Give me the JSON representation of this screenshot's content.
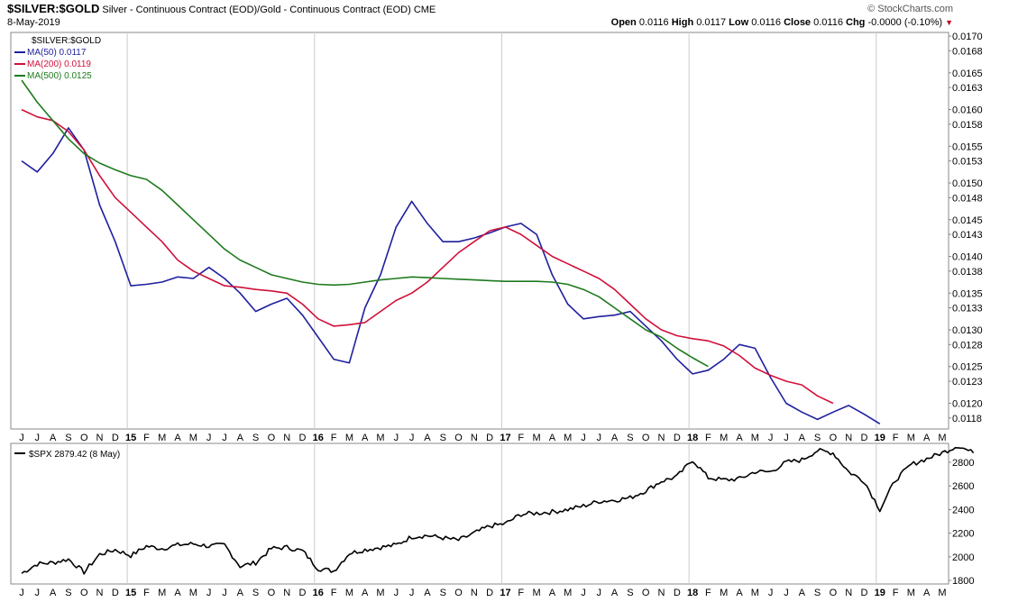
{
  "header": {
    "symbol": "$SILVER:$GOLD",
    "description": "Silver - Continuous Contract (EOD)/Gold - Continuous Contract (EOD)",
    "exchange": "CME",
    "date": "8-May-2019",
    "brand": "© StockCharts.com",
    "open_label": "Open",
    "open": "0.0116",
    "high_label": "High",
    "high": "0.0117",
    "low_label": "Low",
    "low": "0.0116",
    "close_label": "Close",
    "close": "0.0116",
    "chg_label": "Chg",
    "chg": "-0.0000 (-0.10%)"
  },
  "colors": {
    "ma50": "#1f1f9f",
    "ma200": "#d0103a",
    "ma500": "#1e7a1e",
    "spx": "#000000",
    "grid": "#cccccc",
    "down": "#c00020"
  },
  "chart_data": [
    {
      "type": "line",
      "title": "$SILVER:$GOLD",
      "x_months": [
        "J",
        "J",
        "A",
        "S",
        "O",
        "N",
        "D",
        "15",
        "F",
        "M",
        "A",
        "M",
        "J",
        "J",
        "A",
        "S",
        "O",
        "N",
        "D",
        "16",
        "F",
        "M",
        "A",
        "M",
        "J",
        "J",
        "A",
        "S",
        "O",
        "N",
        "D",
        "17",
        "F",
        "M",
        "A",
        "M",
        "J",
        "J",
        "A",
        "S",
        "O",
        "N",
        "D",
        "18",
        "F",
        "M",
        "A",
        "M",
        "J",
        "J",
        "A",
        "S",
        "O",
        "N",
        "D",
        "19",
        "F",
        "M",
        "A",
        "M"
      ],
      "y_ticks": [
        "0.0118",
        "0.0120",
        "0.0123",
        "0.0125",
        "0.0128",
        "0.0130",
        "0.0133",
        "0.0135",
        "0.0138",
        "0.0140",
        "0.0143",
        "0.0145",
        "0.0148",
        "0.0150",
        "0.0153",
        "0.0155",
        "0.0158",
        "0.0160",
        "0.0163",
        "0.0165",
        "0.0168",
        "0.0170"
      ],
      "ylim": [
        0.01165,
        0.01705
      ],
      "legend": [
        {
          "key": "price",
          "label": "$SILVER:$GOLD"
        },
        {
          "key": "ma50",
          "label": "MA(50) 0.0117"
        },
        {
          "key": "ma200",
          "label": "MA(200) 0.0119"
        },
        {
          "key": "ma500",
          "label": "MA(500) 0.0125"
        }
      ],
      "series": [
        {
          "name": "MA(50)",
          "key": "ma50",
          "points": [
            [
              0,
              0.0153
            ],
            [
              1,
              0.01515
            ],
            [
              2,
              0.0154
            ],
            [
              3,
              0.01575
            ],
            [
              4,
              0.01545
            ],
            [
              5,
              0.0147
            ],
            [
              6,
              0.0142
            ],
            [
              7,
              0.0136
            ],
            [
              8,
              0.01362
            ],
            [
              9,
              0.01365
            ],
            [
              10,
              0.01372
            ],
            [
              11,
              0.0137
            ],
            [
              12,
              0.01385
            ],
            [
              13,
              0.0137
            ],
            [
              14,
              0.0135
            ],
            [
              15,
              0.01325
            ],
            [
              16,
              0.01335
            ],
            [
              17,
              0.01343
            ],
            [
              18,
              0.0132
            ],
            [
              19,
              0.0129
            ],
            [
              20,
              0.0126
            ],
            [
              21,
              0.01255
            ],
            [
              22,
              0.0133
            ],
            [
              23,
              0.01375
            ],
            [
              24,
              0.0144
            ],
            [
              25,
              0.01475
            ],
            [
              26,
              0.01445
            ],
            [
              27,
              0.0142
            ],
            [
              28,
              0.0142
            ],
            [
              29,
              0.01425
            ],
            [
              30,
              0.01432
            ],
            [
              31,
              0.0144
            ],
            [
              32,
              0.01445
            ],
            [
              33,
              0.0143
            ],
            [
              34,
              0.01375
            ],
            [
              35,
              0.01335
            ],
            [
              36,
              0.01315
            ],
            [
              37,
              0.01318
            ],
            [
              38,
              0.0132
            ],
            [
              39,
              0.01325
            ],
            [
              40,
              0.01305
            ],
            [
              41,
              0.01285
            ],
            [
              42,
              0.0126
            ],
            [
              43,
              0.0124
            ],
            [
              44,
              0.01245
            ],
            [
              45,
              0.0126
            ],
            [
              46,
              0.0128
            ],
            [
              47,
              0.01275
            ],
            [
              48,
              0.01235
            ],
            [
              49,
              0.012
            ],
            [
              50,
              0.01188
            ],
            [
              51,
              0.01178
            ],
            [
              52,
              0.01188
            ],
            [
              53,
              0.01197
            ],
            [
              54,
              0.01185
            ],
            [
              55,
              0.01172
            ]
          ]
        },
        {
          "name": "MA(200)",
          "key": "ma200",
          "points": [
            [
              0,
              0.016
            ],
            [
              1,
              0.0159
            ],
            [
              2,
              0.01585
            ],
            [
              3,
              0.0157
            ],
            [
              4,
              0.01545
            ],
            [
              5,
              0.0151
            ],
            [
              6,
              0.0148
            ],
            [
              7,
              0.0146
            ],
            [
              8,
              0.0144
            ],
            [
              9,
              0.0142
            ],
            [
              10,
              0.01395
            ],
            [
              11,
              0.0138
            ],
            [
              12,
              0.0137
            ],
            [
              13,
              0.0136
            ],
            [
              14,
              0.01358
            ],
            [
              15,
              0.01355
            ],
            [
              16,
              0.01353
            ],
            [
              17,
              0.0135
            ],
            [
              18,
              0.01335
            ],
            [
              19,
              0.01315
            ],
            [
              20,
              0.01305
            ],
            [
              21,
              0.01307
            ],
            [
              22,
              0.0131
            ],
            [
              23,
              0.01325
            ],
            [
              24,
              0.0134
            ],
            [
              25,
              0.0135
            ],
            [
              26,
              0.01365
            ],
            [
              27,
              0.01385
            ],
            [
              28,
              0.01405
            ],
            [
              29,
              0.0142
            ],
            [
              30,
              0.01435
            ],
            [
              31,
              0.0144
            ],
            [
              32,
              0.0143
            ],
            [
              33,
              0.01415
            ],
            [
              34,
              0.014
            ],
            [
              35,
              0.0139
            ],
            [
              36,
              0.0138
            ],
            [
              37,
              0.0137
            ],
            [
              38,
              0.01355
            ],
            [
              39,
              0.01335
            ],
            [
              40,
              0.01315
            ],
            [
              41,
              0.013
            ],
            [
              42,
              0.01292
            ],
            [
              43,
              0.01288
            ],
            [
              44,
              0.01285
            ],
            [
              45,
              0.01278
            ],
            [
              46,
              0.01265
            ],
            [
              47,
              0.01248
            ],
            [
              48,
              0.01238
            ],
            [
              49,
              0.0123
            ],
            [
              50,
              0.01225
            ],
            [
              51,
              0.0121
            ],
            [
              52,
              0.012
            ]
          ]
        },
        {
          "name": "MA(500)",
          "key": "ma500",
          "points": [
            [
              0,
              0.0164
            ],
            [
              1,
              0.0161
            ],
            [
              2,
              0.01585
            ],
            [
              3,
              0.0156
            ],
            [
              4,
              0.0154
            ],
            [
              5,
              0.01527
            ],
            [
              6,
              0.01518
            ],
            [
              7,
              0.0151
            ],
            [
              8,
              0.01505
            ],
            [
              9,
              0.0149
            ],
            [
              10,
              0.0147
            ],
            [
              11,
              0.0145
            ],
            [
              12,
              0.0143
            ],
            [
              13,
              0.0141
            ],
            [
              14,
              0.01395
            ],
            [
              15,
              0.01385
            ],
            [
              16,
              0.01375
            ],
            [
              17,
              0.0137
            ],
            [
              18,
              0.01365
            ],
            [
              19,
              0.01362
            ],
            [
              20,
              0.01361
            ],
            [
              21,
              0.01362
            ],
            [
              22,
              0.01365
            ],
            [
              23,
              0.01368
            ],
            [
              24,
              0.0137
            ],
            [
              25,
              0.01372
            ],
            [
              26,
              0.01371
            ],
            [
              27,
              0.0137
            ],
            [
              28,
              0.01369
            ],
            [
              29,
              0.01368
            ],
            [
              30,
              0.01367
            ],
            [
              31,
              0.01366
            ],
            [
              32,
              0.01366
            ],
            [
              33,
              0.01366
            ],
            [
              34,
              0.01365
            ],
            [
              35,
              0.01362
            ],
            [
              36,
              0.01355
            ],
            [
              37,
              0.01345
            ],
            [
              38,
              0.0133
            ],
            [
              39,
              0.01315
            ],
            [
              40,
              0.013
            ],
            [
              41,
              0.0129
            ],
            [
              42,
              0.01275
            ],
            [
              43,
              0.01262
            ],
            [
              44,
              0.0125
            ]
          ]
        }
      ]
    },
    {
      "type": "line",
      "title": "$SPX 2879.42 (8 May)",
      "legend_label": "$SPX 2879.42 (8 May)",
      "y_ticks": [
        "1800",
        "2000",
        "2200",
        "2400",
        "2600",
        "2800"
      ],
      "ylim": [
        1770,
        2960
      ],
      "x_months": [
        "J",
        "J",
        "A",
        "S",
        "O",
        "N",
        "D",
        "15",
        "F",
        "M",
        "A",
        "M",
        "J",
        "J",
        "A",
        "S",
        "O",
        "N",
        "D",
        "16",
        "F",
        "M",
        "A",
        "M",
        "J",
        "J",
        "A",
        "S",
        "O",
        "N",
        "D",
        "17",
        "F",
        "M",
        "A",
        "M",
        "J",
        "J",
        "A",
        "S",
        "O",
        "N",
        "D",
        "18",
        "F",
        "M",
        "A",
        "M",
        "J",
        "J",
        "A",
        "S",
        "O",
        "N",
        "D",
        "19",
        "F",
        "M",
        "A",
        "M"
      ],
      "series": [
        {
          "name": "$SPX",
          "key": "spx",
          "points": [
            [
              0,
              1860
            ],
            [
              1,
              1940
            ],
            [
              2,
              1950
            ],
            [
              3,
              1980
            ],
            [
              4,
              1870
            ],
            [
              5,
              2020
            ],
            [
              6,
              2060
            ],
            [
              7,
              2010
            ],
            [
              8,
              2090
            ],
            [
              9,
              2070
            ],
            [
              10,
              2100
            ],
            [
              11,
              2110
            ],
            [
              12,
              2090
            ],
            [
              13,
              2100
            ],
            [
              14,
              1920
            ],
            [
              15,
              1950
            ],
            [
              16,
              2070
            ],
            [
              17,
              2080
            ],
            [
              18,
              2050
            ],
            [
              19,
              1900
            ],
            [
              20,
              1880
            ],
            [
              21,
              2030
            ],
            [
              22,
              2060
            ],
            [
              23,
              2080
            ],
            [
              24,
              2100
            ],
            [
              25,
              2170
            ],
            [
              26,
              2180
            ],
            [
              27,
              2160
            ],
            [
              28,
              2140
            ],
            [
              29,
              2200
            ],
            [
              30,
              2260
            ],
            [
              31,
              2280
            ],
            [
              32,
              2360
            ],
            [
              33,
              2370
            ],
            [
              34,
              2380
            ],
            [
              35,
              2400
            ],
            [
              36,
              2430
            ],
            [
              37,
              2470
            ],
            [
              38,
              2480
            ],
            [
              39,
              2500
            ],
            [
              40,
              2560
            ],
            [
              41,
              2640
            ],
            [
              42,
              2680
            ],
            [
              43,
              2820
            ],
            [
              44,
              2670
            ],
            [
              45,
              2650
            ],
            [
              46,
              2660
            ],
            [
              47,
              2720
            ],
            [
              48,
              2720
            ],
            [
              49,
              2800
            ],
            [
              50,
              2820
            ],
            [
              51,
              2900
            ],
            [
              52,
              2880
            ],
            [
              53,
              2720
            ],
            [
              54,
              2640
            ],
            [
              55,
              2400
            ],
            [
              56,
              2650
            ],
            [
              57,
              2780
            ],
            [
              58,
              2830
            ],
            [
              59,
              2880
            ],
            [
              60,
              2940
            ],
            [
              61,
              2879
            ]
          ]
        }
      ]
    }
  ]
}
